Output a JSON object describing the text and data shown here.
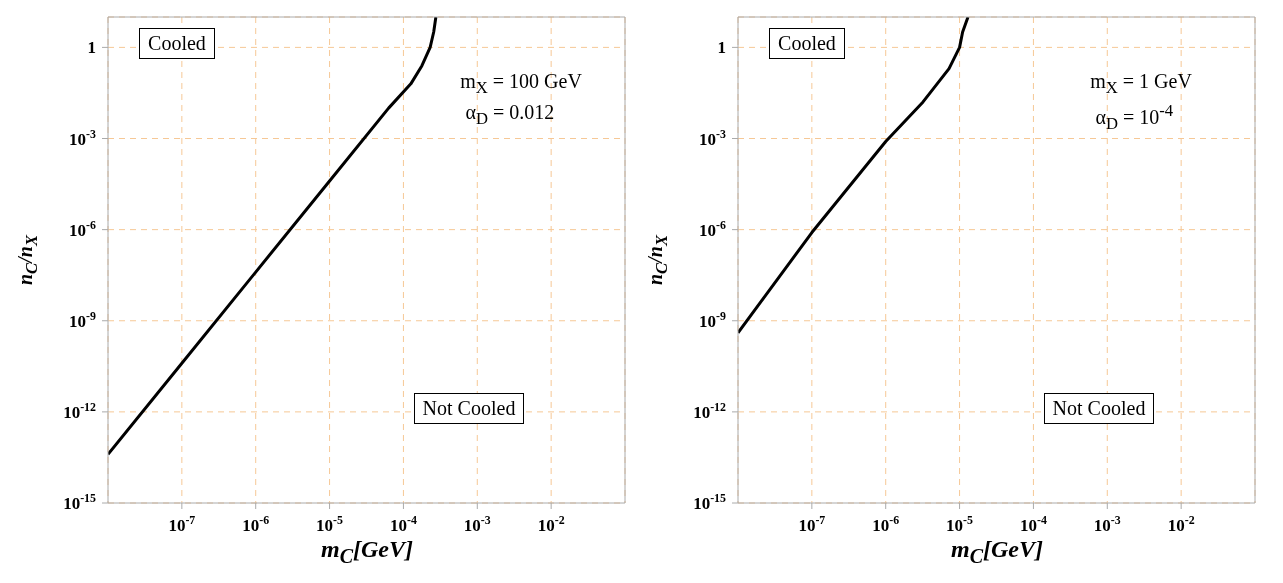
{
  "chart_data": [
    {
      "type": "line",
      "xlabel": "m$_{C}$[GeV]",
      "ylabel": "n$_{C}$/n$_{X}$",
      "annotations": [
        "Cooled",
        "Not Cooled",
        "m$_{X}$ = 100 GeV",
        "α$_{D}$ = 0.012"
      ],
      "log": "xy",
      "grid": true,
      "marker": "none",
      "line_style": "solid",
      "color": "#000000",
      "xlim": [
        1e-08,
        0.1
      ],
      "ylim": [
        1e-15,
        10
      ],
      "xticks": [
        {
          "value": 1e-07,
          "label": "10$^{-7}$"
        },
        {
          "value": 1e-06,
          "label": "10$^{-6}$"
        },
        {
          "value": 1e-05,
          "label": "10$^{-5}$"
        },
        {
          "value": 0.0001,
          "label": "10$^{-4}$"
        },
        {
          "value": 0.001,
          "label": "10$^{-3}$"
        },
        {
          "value": 0.01,
          "label": "10$^{-2}$"
        }
      ],
      "yticks": [
        {
          "value": 1e-15,
          "label": "10$^{-15}$"
        },
        {
          "value": 1e-12,
          "label": "10$^{-12}$"
        },
        {
          "value": 1e-09,
          "label": "10$^{-9}$"
        },
        {
          "value": 1e-06,
          "label": "10$^{-6}$"
        },
        {
          "value": 0.001,
          "label": "10$^{-3}$"
        },
        1
      ],
      "x": [
        1e-08,
        1e-07,
        1e-06,
        1e-05,
        6.3e-05,
        0.000126,
        0.000178,
        0.00023,
        0.000257,
        0.000275
      ],
      "values": [
        4e-14,
        4e-11,
        4e-08,
        4e-05,
        0.01,
        0.063,
        0.25,
        1,
        3.2,
        10
      ]
    },
    {
      "type": "line",
      "xlabel": "m$_{C}$[GeV]",
      "ylabel": "n$_{C}$/n$_{X}$",
      "annotations": [
        "Cooled",
        "Not Cooled",
        "m$_{X}$ = 1 GeV",
        "α$_{D}$ = 10$^{-4}$"
      ],
      "log": "xy",
      "grid": true,
      "marker": "none",
      "line_style": "solid",
      "color": "#000000",
      "xlim": [
        1e-08,
        0.1
      ],
      "ylim": [
        1e-15,
        10
      ],
      "xticks": [
        {
          "value": 1e-07,
          "label": "10$^{-7}$"
        },
        {
          "value": 1e-06,
          "label": "10$^{-6}$"
        },
        {
          "value": 1e-05,
          "label": "10$^{-5}$"
        },
        {
          "value": 0.0001,
          "label": "10$^{-4}$"
        },
        {
          "value": 0.001,
          "label": "10$^{-3}$"
        },
        {
          "value": 0.01,
          "label": "10$^{-2}$"
        }
      ],
      "yticks": [
        {
          "value": 1e-15,
          "label": "10$^{-15}$"
        },
        {
          "value": 1e-12,
          "label": "10$^{-12}$"
        },
        {
          "value": 1e-09,
          "label": "10$^{-9}$"
        },
        {
          "value": 1e-06,
          "label": "10$^{-6}$"
        },
        {
          "value": 0.001,
          "label": "10$^{-3}$"
        },
        1
      ],
      "x": [
        1e-08,
        1e-07,
        1e-06,
        3.2e-06,
        7.2e-06,
        1e-05,
        1.1e-05,
        1.3e-05
      ],
      "values": [
        4e-10,
        8e-07,
        0.0008,
        0.016,
        0.2,
        1,
        3.2,
        10
      ]
    }
  ]
}
